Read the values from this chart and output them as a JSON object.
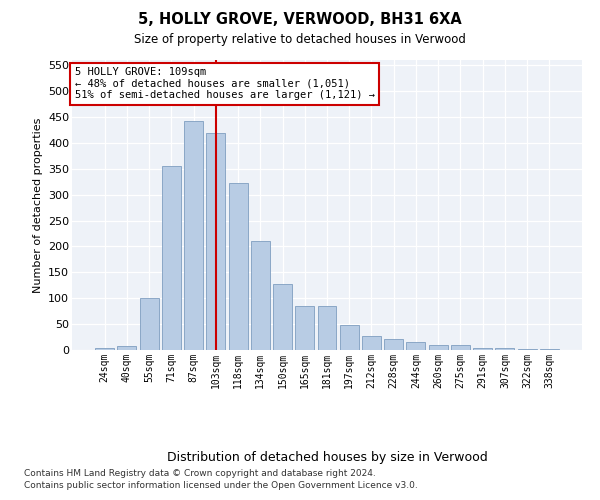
{
  "title": "5, HOLLY GROVE, VERWOOD, BH31 6XA",
  "subtitle": "Size of property relative to detached houses in Verwood",
  "xlabel": "Distribution of detached houses by size in Verwood",
  "ylabel": "Number of detached properties",
  "categories": [
    "24sqm",
    "40sqm",
    "55sqm",
    "71sqm",
    "87sqm",
    "103sqm",
    "118sqm",
    "134sqm",
    "150sqm",
    "165sqm",
    "181sqm",
    "197sqm",
    "212sqm",
    "228sqm",
    "244sqm",
    "260sqm",
    "275sqm",
    "291sqm",
    "307sqm",
    "322sqm",
    "338sqm"
  ],
  "values": [
    3,
    7,
    100,
    355,
    443,
    420,
    322,
    210,
    127,
    85,
    85,
    48,
    27,
    22,
    15,
    10,
    10,
    3,
    3,
    1,
    2
  ],
  "bar_color": "#b8cce4",
  "bar_edge_color": "#7f9ec0",
  "vline_color": "#cc0000",
  "vline_x": 5.0,
  "annotation_text": "5 HOLLY GROVE: 109sqm\n← 48% of detached houses are smaller (1,051)\n51% of semi-detached houses are larger (1,121) →",
  "annotation_box_color": "#ffffff",
  "annotation_box_edge_color": "#cc0000",
  "ylim": [
    0,
    560
  ],
  "yticks": [
    0,
    50,
    100,
    150,
    200,
    250,
    300,
    350,
    400,
    450,
    500,
    550
  ],
  "bg_color": "#eef2f8",
  "footnote_line1": "Contains HM Land Registry data © Crown copyright and database right 2024.",
  "footnote_line2": "Contains public sector information licensed under the Open Government Licence v3.0."
}
